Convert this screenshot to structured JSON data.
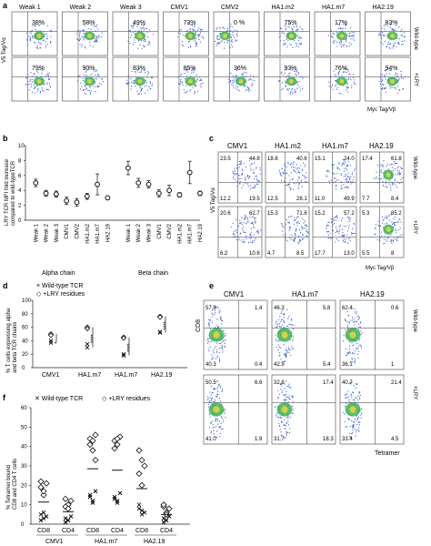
{
  "panels": {
    "a": {
      "letter": "a",
      "columns": [
        "Weak 1",
        "Weak 2",
        "Weak 3",
        "CMV1",
        "CMV2",
        "HA1.m2",
        "HA1.m7",
        "HA2.19"
      ],
      "row_top_pct": [
        "38%",
        "58%",
        "49%",
        "73%",
        "0 %",
        "75%",
        "17%",
        "83%"
      ],
      "row_bot_pct": [
        "79%",
        "90%",
        "83%",
        "85%",
        "36%",
        "93%",
        "76%",
        "94%"
      ],
      "row_labels": [
        "Wild-type",
        "+LRY"
      ],
      "y_axis": "V5 Tag/Vα",
      "x_axis": "Myc Tag/Vβ",
      "dot_color": "#3a5bd0",
      "hot_color": "#2fb04a"
    },
    "b": {
      "letter": "b",
      "y_label_1": "LRY TCR MFI fold increase",
      "y_label_2": "compared to wild-typeTCR",
      "yticks": [
        "0",
        "2",
        "4",
        "6",
        "8",
        "10"
      ],
      "categories": [
        "Weak 1",
        "Weak 2",
        "Weak 3",
        "CMV1",
        "CMV2",
        "HA1.m2",
        "HA1.m7",
        "HA2.19"
      ],
      "group_labels": [
        "Alpha chain",
        "Beta chain"
      ]
    },
    "c": {
      "letter": "c",
      "columns": [
        "CMV1",
        "HA1.m2",
        "HA1.m7",
        "HA2.19"
      ],
      "quadrants_top": [
        [
          "23.5",
          "44.8",
          "12.2",
          "19.5"
        ],
        [
          "18.8",
          "40.6",
          "12.5",
          "28.1"
        ],
        [
          "15.1",
          "24.0",
          "11.0",
          "49.9"
        ],
        [
          "17.4",
          "61.8",
          "7.7",
          "8.4"
        ]
      ],
      "quadrants_bot": [
        [
          "20.6",
          "62.7",
          "6.2",
          "10.6"
        ],
        [
          "15.3",
          "71.6",
          "4.7",
          "8.5"
        ],
        [
          "15.2",
          "57.2",
          "17.7",
          "13.0"
        ],
        [
          "5.3",
          "85.2",
          "5.5",
          "8"
        ]
      ],
      "row_labels": [
        "Wild-type",
        "+LRY"
      ],
      "y_axis": "V5 Tag/Vα",
      "x_axis": "Myc Tag/Vβ"
    },
    "d": {
      "letter": "d",
      "legend": [
        "Wild-type TCR",
        "+LRY residues"
      ],
      "y_label_1": "% T cells expressing alpha",
      "y_label_2": "and beta TCR chains",
      "yticks": [
        "0",
        "20",
        "40",
        "60",
        "80",
        "100"
      ],
      "categories": [
        "CMV1",
        "HA1.m7",
        "HA1.m7",
        "HA2.19"
      ],
      "sig": [
        "*",
        "****",
        "****",
        "****"
      ]
    },
    "e": {
      "letter": "e",
      "columns": [
        "CMV1",
        "HA1.m7",
        "HA2.19"
      ],
      "quadrants_top": [
        [
          "57.8",
          "1.4",
          "40.3",
          "0.4"
        ],
        [
          "46.3",
          "5.8",
          "42.9",
          "5.4"
        ],
        [
          "62.4",
          "0.6",
          "36.1",
          "1"
        ]
      ],
      "quadrants_bot": [
        [
          "50.5",
          "6.6",
          "41.0",
          "1.9"
        ],
        [
          "32.6",
          "17.4",
          "31.7",
          "18.3"
        ],
        [
          "40.7",
          "21.4",
          "33.4",
          "4.5"
        ]
      ],
      "row_labels": [
        "Wild-type",
        "+LRY"
      ],
      "y_axis": "CD8",
      "x_axis": "Tetramer"
    },
    "f": {
      "letter": "f",
      "legend": [
        "Wild-type TCR",
        "+LRY residues"
      ],
      "y_label_1": "% Tetramer bound",
      "y_label_2": "CD8 and CD4 T cells",
      "yticks": [
        "0",
        "10",
        "20",
        "30",
        "40",
        "50",
        "60"
      ],
      "sub": [
        "CD8",
        "CD4",
        "CD8",
        "CD4",
        "CD8",
        "CD4"
      ],
      "groups": [
        "CMV1",
        "HA1.m7",
        "HA2.19"
      ]
    }
  },
  "chart_data": [
    {
      "type": "scatter",
      "panel": "b",
      "ylabel": "LRY TCR MFI fold increase compared to wild-typeTCR",
      "ylim": [
        0,
        10
      ],
      "categories": [
        "Weak 1",
        "Weak 2",
        "Weak 3",
        "CMV1",
        "CMV2",
        "HA1.m2",
        "HA1.m7",
        "HA2.19"
      ],
      "series": [
        {
          "name": "Alpha chain",
          "values": [
            5.0,
            3.6,
            3.5,
            2.6,
            2.4,
            3.2,
            4.8,
            3.0
          ],
          "errors": [
            0.5,
            0.4,
            0.4,
            0.5,
            0.5,
            0.4,
            1.4,
            0.2
          ]
        },
        {
          "name": "Beta chain",
          "values": [
            7.0,
            5.0,
            4.8,
            3.6,
            4.0,
            3.4,
            6.4,
            3.6
          ],
          "errors": [
            0.9,
            0.6,
            0.5,
            0.5,
            0.7,
            0.3,
            1.5,
            0.3
          ]
        }
      ]
    },
    {
      "type": "scatter",
      "panel": "d",
      "ylabel": "% T cells expressing alpha and beta TCR chains",
      "ylim": [
        0,
        100
      ],
      "categories": [
        "CMV1",
        "HA1.m7",
        "HA1.m7",
        "HA2.19"
      ],
      "series": [
        {
          "name": "Wild-type TCR",
          "values": [
            [
              40,
              37
            ],
            [
              35,
              30
            ],
            [
              20,
              18
            ],
            [
              53,
              52
            ]
          ]
        },
        {
          "name": "+LRY residues",
          "values": [
            [
              50,
              48
            ],
            [
              60,
              58
            ],
            [
              45,
              44
            ],
            [
              76,
              75
            ]
          ]
        }
      ]
    },
    {
      "type": "scatter",
      "panel": "f",
      "ylabel": "% Tetramer bound CD8 and CD4 T cells",
      "ylim": [
        0,
        60
      ],
      "categories": [
        "CMV1 CD8",
        "CMV1 CD4",
        "HA1.m7 CD8",
        "HA1.m7 CD4",
        "HA2.19 CD8",
        "HA2.19 CD4"
      ],
      "series": [
        {
          "name": "Wild-type TCR",
          "values": [
            [
              5,
              3,
              4,
              2,
              6
            ],
            [
              3,
              2,
              4,
              1,
              2
            ],
            [
              15,
              12,
              17,
              14,
              11
            ],
            [
              14,
              12,
              16,
              13,
              11
            ],
            [
              8,
              7,
              6,
              10,
              5
            ],
            [
              3,
              2,
              4,
              1,
              2
            ]
          ]
        },
        {
          "name": "+LRY residues",
          "values": [
            [
              19,
              15,
              21,
              22,
              17
            ],
            [
              13,
              10,
              12,
              9,
              8
            ],
            [
              44,
              38,
              46,
              41,
              43,
              33
            ],
            [
              43,
              41,
              45,
              39,
              44
            ],
            [
              38,
              33,
              30,
              26,
              20
            ],
            [
              9,
              6,
              8,
              10,
              5
            ]
          ]
        }
      ]
    }
  ]
}
